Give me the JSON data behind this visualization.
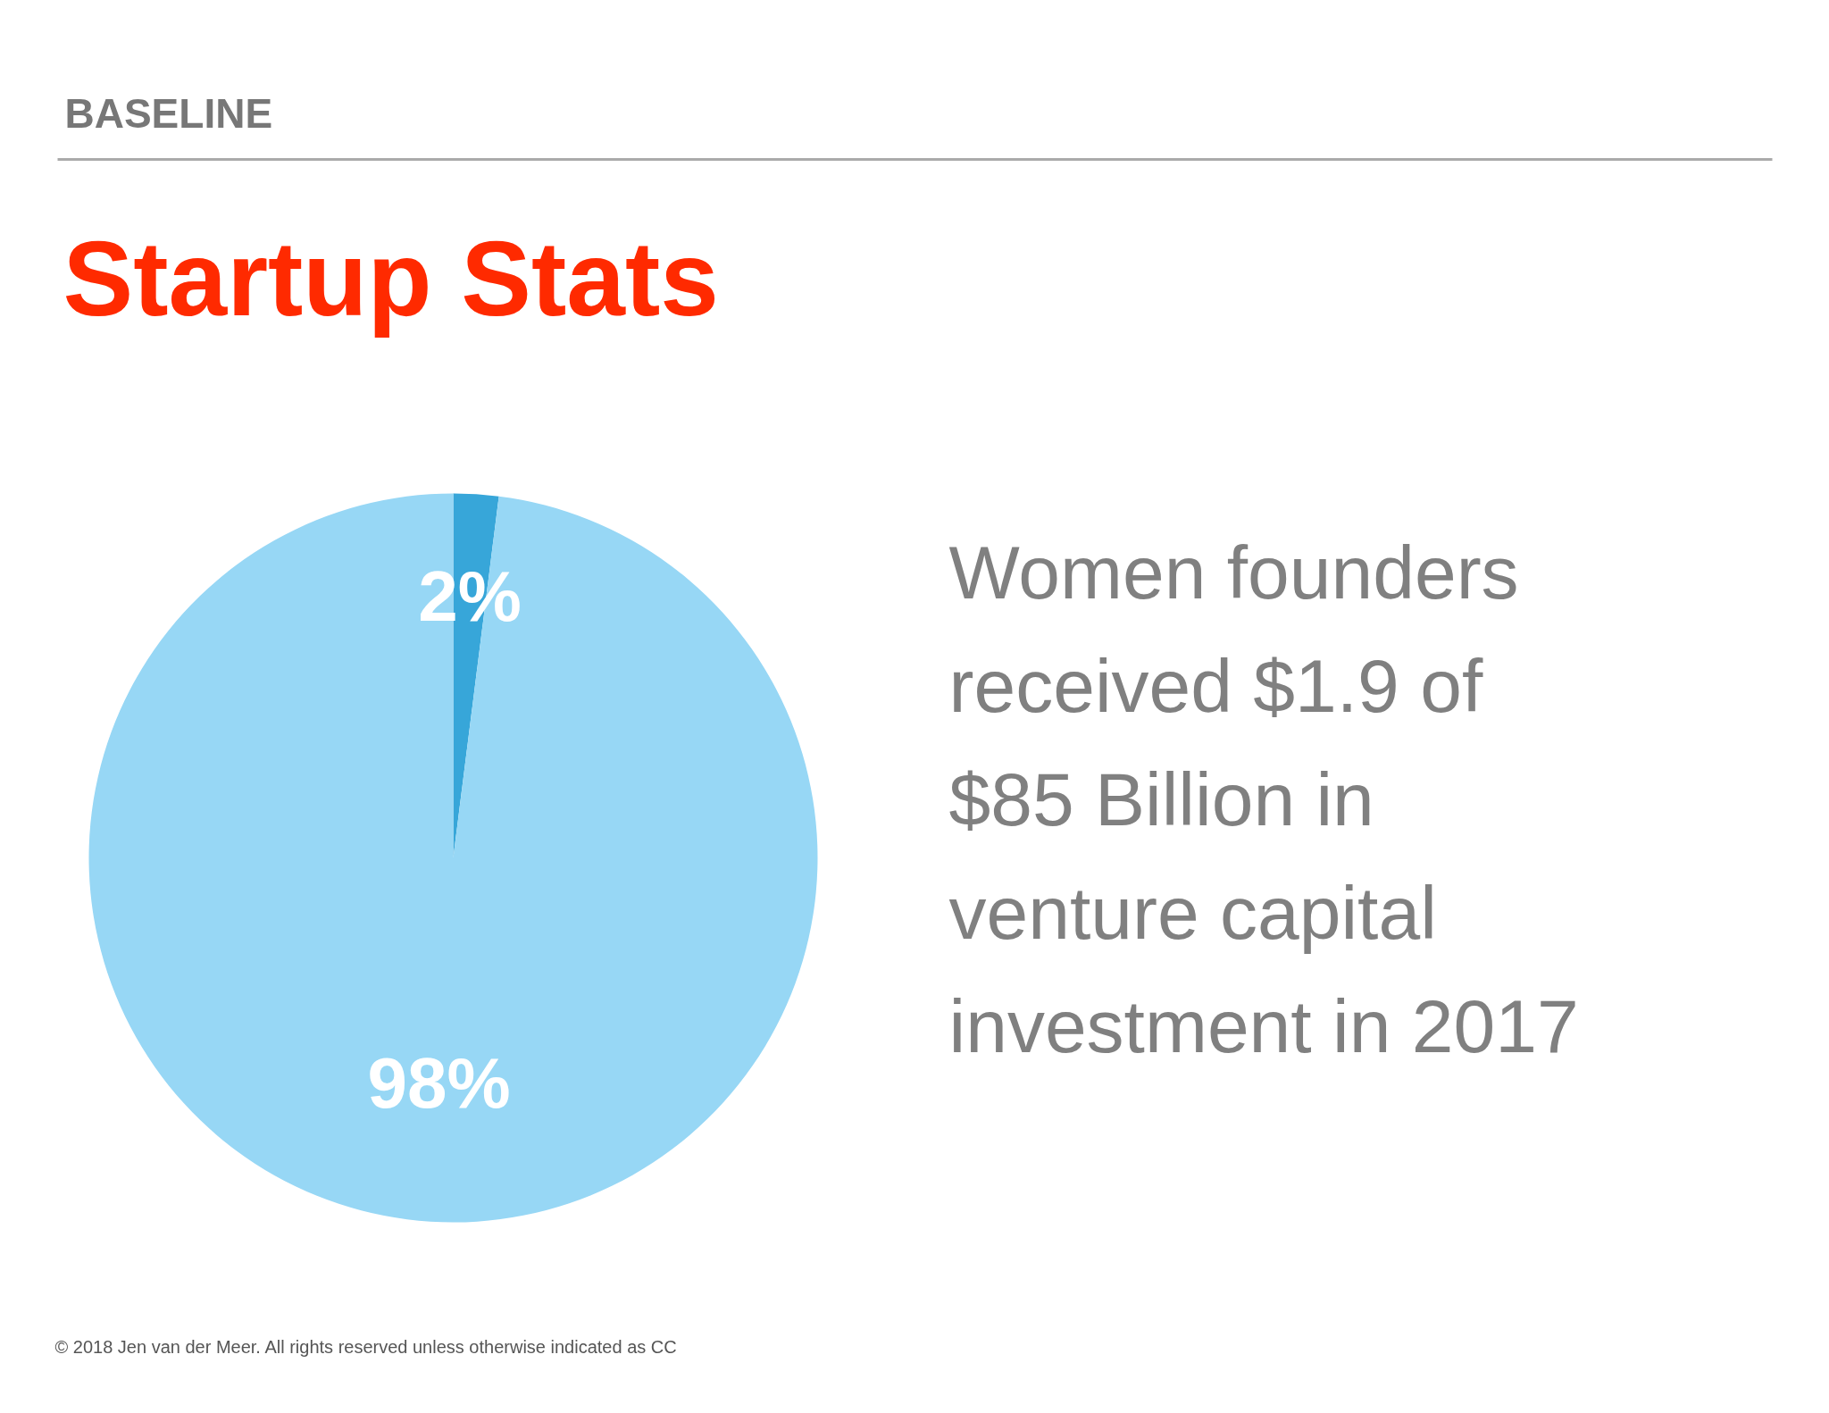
{
  "chart_data": {
    "type": "pie",
    "title": "Startup Stats",
    "subtitle": "BASELINE",
    "categories": [
      null,
      null
    ],
    "values": [
      2,
      98
    ],
    "colors": [
      "#37a6d9",
      "#97d7f5"
    ],
    "value_labels": [
      "2%",
      "98%"
    ],
    "annotations": [
      "Women founders\nreceived $1.9 of\n$85 Billion in\nventure capital\ninvestment in 2017",
      "© 2018 Jen van der Meer. All rights reserved unless otherwise indicated as CC"
    ]
  }
}
